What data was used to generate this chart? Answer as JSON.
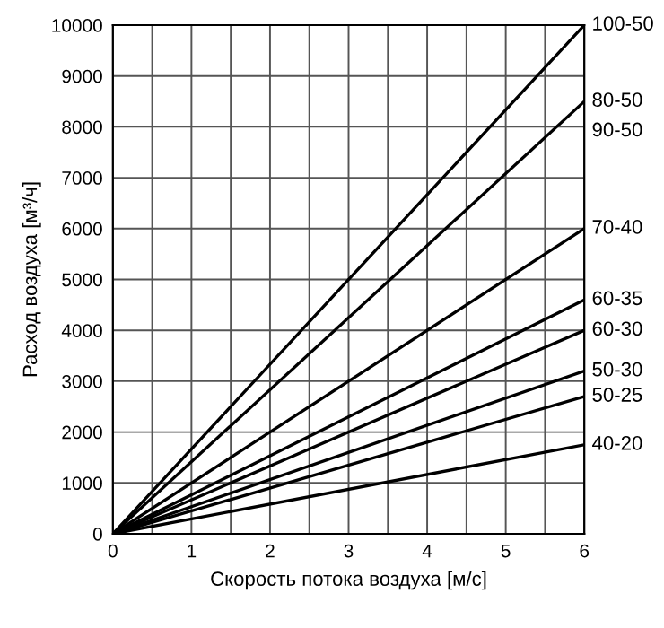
{
  "chart_data": {
    "type": "line",
    "xlabel": "Скорость потока воздуха [м/с]",
    "ylabel": "Расход воздуха [м³/ч]",
    "xlim": [
      0,
      6
    ],
    "ylim": [
      0,
      10000
    ],
    "xticks": [
      0,
      {
        "value": 0.5,
        "label": null
      },
      1,
      {
        "value": 1.5,
        "label": null
      },
      2,
      {
        "value": 2.5,
        "label": null
      },
      3,
      {
        "value": 3.5,
        "label": null
      },
      4,
      {
        "value": 4.5,
        "label": null
      },
      5,
      {
        "value": 5.5,
        "label": null
      },
      6
    ],
    "yticks": [
      0,
      1000,
      2000,
      3000,
      4000,
      5000,
      6000,
      7000,
      8000,
      9000,
      10000
    ],
    "grid": true,
    "legend": false,
    "marker": "none",
    "line_style": "solid",
    "x": [
      0,
      6
    ],
    "series": [
      {
        "name": "100-50",
        "color": "#000000",
        "values": [
          0,
          10000
        ]
      },
      {
        "name": "80-50",
        "color": "#000000",
        "values": [
          0,
          8500
        ]
      },
      {
        "name": "70-40",
        "color": "#000000",
        "values": [
          0,
          6000
        ]
      },
      {
        "name": "60-35",
        "color": "#000000",
        "values": [
          0,
          4600
        ]
      },
      {
        "name": "60-30",
        "color": "#000000",
        "values": [
          0,
          4000
        ]
      },
      {
        "name": "50-30",
        "color": "#000000",
        "values": [
          0,
          3200
        ]
      },
      {
        "name": "50-25",
        "color": "#000000",
        "values": [
          0,
          2700
        ]
      },
      {
        "name": "40-20",
        "color": "#000000",
        "values": [
          0,
          1750
        ]
      }
    ],
    "annotations": [
      {
        "text": "90-50",
        "x": 6,
        "y": 8500
      }
    ]
  }
}
